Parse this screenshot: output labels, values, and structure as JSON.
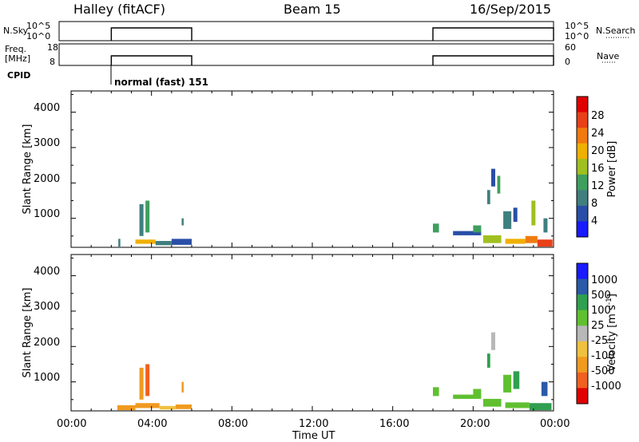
{
  "header": {
    "station": "Halley (fitACF)",
    "beam": "Beam 15",
    "date": "16/Sep/2015"
  },
  "status": {
    "nsky_label": "N.Sky",
    "nsky_ticks": [
      "10^5",
      "10^0"
    ],
    "nsearch_label": "N.Search",
    "nsearch_ticks": [
      "10^5",
      "10^0"
    ],
    "freq_label": "Freq.",
    "freq_unit": "[MHz]",
    "freq_ticks": [
      "18",
      "8"
    ],
    "nave_label": "Nave",
    "nave_ticks": [
      "60",
      "0"
    ],
    "cpid_label": "CPID",
    "cpid_value": "normal (fast) 151"
  },
  "colors": {
    "power_scale": [
      "#1a1aff",
      "#2a4ea8",
      "#3f7f7f",
      "#3f9f5f",
      "#a0c020",
      "#f0b000",
      "#f07a10",
      "#e84018",
      "#e00000"
    ],
    "velocity_scale": [
      "#e00000",
      "#f06020",
      "#f09a20",
      "#f0c040",
      "#b8b8b8",
      "#60c030",
      "#2f9f50",
      "#2a5aa8",
      "#1a1aff"
    ]
  },
  "chart_data": [
    {
      "type": "heatmap",
      "title": "",
      "xlabel": "",
      "ylabel": "Slant Range [km]",
      "xlim": [
        "00:00",
        "00:00"
      ],
      "ylim": [
        180,
        4600
      ],
      "y_ticks": [
        "4000",
        "3000",
        "2000",
        "1000"
      ],
      "colorbar_label": "Power [dB]",
      "colorbar_ticks": [
        "28",
        "24",
        "20",
        "16",
        "12",
        "8",
        "4"
      ],
      "colorbar_range": [
        0,
        32
      ],
      "patches": [
        {
          "t0": 2.35,
          "t1": 2.45,
          "r0": 200,
          "r1": 420,
          "v": 8
        },
        {
          "t0": 3.4,
          "t1": 3.6,
          "r0": 500,
          "r1": 1400,
          "v": 8
        },
        {
          "t0": 3.7,
          "t1": 3.9,
          "r0": 600,
          "r1": 1500,
          "v": 12
        },
        {
          "t0": 3.2,
          "t1": 4.2,
          "r0": 280,
          "r1": 400,
          "v": 20
        },
        {
          "t0": 4.2,
          "t1": 5.0,
          "r0": 240,
          "r1": 360,
          "v": 8
        },
        {
          "t0": 5.0,
          "t1": 6.0,
          "r0": 250,
          "r1": 420,
          "v": 4
        },
        {
          "t0": 5.5,
          "t1": 5.6,
          "r0": 800,
          "r1": 1000,
          "v": 8
        },
        {
          "t0": 18.0,
          "t1": 18.3,
          "r0": 600,
          "r1": 850,
          "v": 12
        },
        {
          "t0": 19.0,
          "t1": 20.4,
          "r0": 520,
          "r1": 640,
          "v": 4
        },
        {
          "t0": 20.0,
          "t1": 20.4,
          "r0": 600,
          "r1": 800,
          "v": 12
        },
        {
          "t0": 20.5,
          "t1": 21.4,
          "r0": 300,
          "r1": 520,
          "v": 16
        },
        {
          "t0": 20.7,
          "t1": 20.85,
          "r0": 1400,
          "r1": 1800,
          "v": 8
        },
        {
          "t0": 20.9,
          "t1": 21.1,
          "r0": 1900,
          "r1": 2400,
          "v": 4
        },
        {
          "t0": 21.2,
          "t1": 21.35,
          "r0": 1700,
          "r1": 2200,
          "v": 12
        },
        {
          "t0": 21.5,
          "t1": 21.9,
          "r0": 700,
          "r1": 1200,
          "v": 8
        },
        {
          "t0": 22.0,
          "t1": 22.2,
          "r0": 900,
          "r1": 1300,
          "v": 4
        },
        {
          "t0": 21.6,
          "t1": 22.6,
          "r0": 280,
          "r1": 420,
          "v": 20
        },
        {
          "t0": 22.6,
          "t1": 23.2,
          "r0": 300,
          "r1": 500,
          "v": 24
        },
        {
          "t0": 22.9,
          "t1": 23.1,
          "r0": 800,
          "r1": 1500,
          "v": 16
        },
        {
          "t0": 23.2,
          "t1": 23.95,
          "r0": 200,
          "r1": 400,
          "v": 28
        },
        {
          "t0": 23.5,
          "t1": 23.7,
          "r0": 600,
          "r1": 1000,
          "v": 8
        }
      ]
    },
    {
      "type": "heatmap",
      "title": "",
      "xlabel": "Time UT",
      "ylabel": "Slant Range [km]",
      "xlim": [
        "00:00",
        "00:00"
      ],
      "ylim": [
        180,
        4600
      ],
      "x_ticks": [
        "00:00",
        "04:00",
        "08:00",
        "12:00",
        "16:00",
        "20:00",
        "00:00"
      ],
      "y_ticks": [
        "4000",
        "3000",
        "2000",
        "1000"
      ],
      "colorbar_label": "Velocity [m s",
      "colorbar_label_sup": "-1",
      "colorbar_label_end": "]",
      "colorbar_ticks": [
        "1000",
        "500",
        "100",
        "25",
        "-25",
        "-100",
        "-500",
        "-1000"
      ],
      "patches": [
        {
          "t0": 2.3,
          "t1": 3.2,
          "r0": 200,
          "r1": 340,
          "v": 2
        },
        {
          "t0": 3.4,
          "t1": 3.6,
          "r0": 500,
          "r1": 1400,
          "v": 2
        },
        {
          "t0": 3.7,
          "t1": 3.9,
          "r0": 600,
          "r1": 1500,
          "v": 1
        },
        {
          "t0": 3.2,
          "t1": 4.4,
          "r0": 260,
          "r1": 400,
          "v": 2
        },
        {
          "t0": 4.4,
          "t1": 5.2,
          "r0": 220,
          "r1": 320,
          "v": 3
        },
        {
          "t0": 5.2,
          "t1": 6.0,
          "r0": 230,
          "r1": 360,
          "v": 2
        },
        {
          "t0": 5.5,
          "t1": 5.6,
          "r0": 700,
          "r1": 1000,
          "v": 2
        },
        {
          "t0": 18.0,
          "t1": 18.3,
          "r0": 600,
          "r1": 850,
          "v": 5
        },
        {
          "t0": 19.0,
          "t1": 20.4,
          "r0": 520,
          "r1": 640,
          "v": 5
        },
        {
          "t0": 20.0,
          "t1": 20.4,
          "r0": 600,
          "r1": 800,
          "v": 5
        },
        {
          "t0": 20.5,
          "t1": 21.4,
          "r0": 300,
          "r1": 520,
          "v": 5
        },
        {
          "t0": 20.7,
          "t1": 20.85,
          "r0": 1400,
          "r1": 1800,
          "v": 6
        },
        {
          "t0": 20.9,
          "t1": 21.1,
          "r0": 1900,
          "r1": 2400,
          "v": 4
        },
        {
          "t0": 21.5,
          "t1": 21.9,
          "r0": 700,
          "r1": 1200,
          "v": 5
        },
        {
          "t0": 22.0,
          "t1": 22.3,
          "r0": 800,
          "r1": 1300,
          "v": 6
        },
        {
          "t0": 21.6,
          "t1": 22.8,
          "r0": 260,
          "r1": 420,
          "v": 5
        },
        {
          "t0": 22.8,
          "t1": 23.9,
          "r0": 200,
          "r1": 400,
          "v": 6
        },
        {
          "t0": 23.4,
          "t1": 23.7,
          "r0": 600,
          "r1": 1000,
          "v": 7
        }
      ]
    }
  ]
}
